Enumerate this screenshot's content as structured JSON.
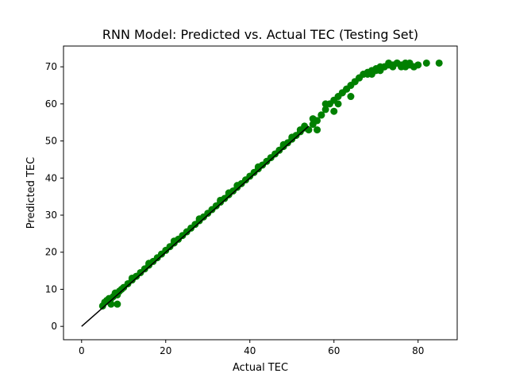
{
  "chart_data": {
    "type": "scatter",
    "title": "RNN Model: Predicted vs. Actual TEC (Testing Set)",
    "xlabel": "Actual TEC",
    "ylabel": "Predicted TEC",
    "xlim": [
      -4.3,
      89.3
    ],
    "ylim": [
      -3.6,
      75.6
    ],
    "x_ticks": [
      0,
      20,
      40,
      60,
      80
    ],
    "y_ticks": [
      0,
      10,
      20,
      30,
      40,
      50,
      60,
      70
    ],
    "grid": false,
    "legend": "none",
    "colors": {
      "points": "#008000",
      "line": "#000000"
    },
    "reference_line": {
      "x": [
        0,
        54
      ],
      "y": [
        0,
        54
      ]
    },
    "series": [
      {
        "type": "scatter",
        "x": [
          5.0,
          5.5,
          6.0,
          6.5,
          7.0,
          7.5,
          8.0,
          8.5,
          9.0,
          9.5,
          10,
          11,
          12,
          13,
          14,
          15,
          16,
          17,
          18,
          19,
          20,
          21,
          22,
          23,
          24,
          25,
          26,
          27,
          28,
          29,
          30,
          31,
          32,
          33,
          34,
          35,
          36,
          37,
          38,
          39,
          40,
          41,
          42,
          43,
          44,
          45,
          46,
          47,
          48,
          49,
          50,
          51,
          52,
          53,
          54,
          55,
          56,
          57,
          58,
          59,
          60,
          61,
          62,
          63,
          64,
          65,
          66,
          67,
          68,
          69,
          70,
          71,
          72,
          73,
          74,
          75,
          76,
          77,
          78,
          79,
          80,
          82,
          85,
          8,
          12,
          16,
          22,
          28,
          35,
          42,
          48,
          52,
          55,
          57,
          58,
          61,
          62,
          63,
          65,
          66,
          68,
          70,
          72,
          74,
          75,
          76,
          78,
          56,
          60,
          64,
          67,
          69,
          71,
          73,
          77,
          79,
          7,
          8.5,
          6.5,
          33,
          37,
          50,
          53
        ],
        "y": [
          5.5,
          6.5,
          7.0,
          7.5,
          7.5,
          8.0,
          8.5,
          8.5,
          9.5,
          10.0,
          10.5,
          11.5,
          12.5,
          13.5,
          14.5,
          15.5,
          16.5,
          17.5,
          18.5,
          19.5,
          20.5,
          21.5,
          22.5,
          23.5,
          24.5,
          25.5,
          26.5,
          27.5,
          28.5,
          29.5,
          30.5,
          31.5,
          32.5,
          33.5,
          34.5,
          35.5,
          36.5,
          37.5,
          38.5,
          39.5,
          40.5,
          41.5,
          42.5,
          43.5,
          44.5,
          45.5,
          46.5,
          47.5,
          48.5,
          49.5,
          50.5,
          51.5,
          52.5,
          53.5,
          53.0,
          54.5,
          55.5,
          57.0,
          58.5,
          60.0,
          61.0,
          62.0,
          63.0,
          64.0,
          65.0,
          66.0,
          67.0,
          68.0,
          68.5,
          69.0,
          69.5,
          70.0,
          70.0,
          70.5,
          70.5,
          71.0,
          70.5,
          71.0,
          70.5,
          70.0,
          70.5,
          71.0,
          71.0,
          9,
          13,
          17,
          23,
          29,
          36,
          43,
          49,
          53,
          56,
          57,
          60,
          60,
          63,
          64,
          66,
          67,
          68,
          69,
          70,
          70,
          71,
          70,
          71,
          53,
          58,
          62,
          68,
          68,
          69,
          71,
          70,
          70,
          6,
          6,
          7,
          34,
          38,
          51,
          54
        ]
      }
    ]
  }
}
